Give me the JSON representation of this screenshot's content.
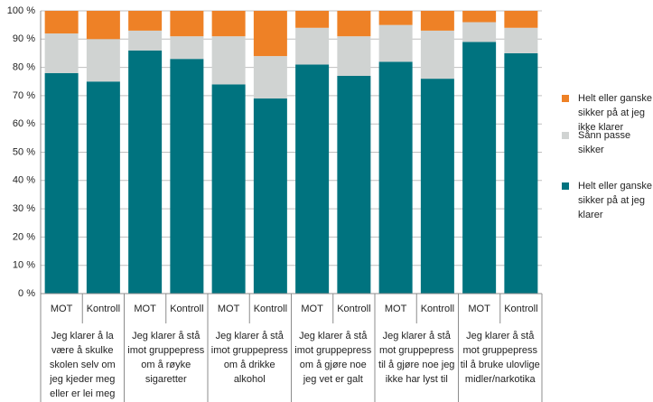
{
  "chart_data": {
    "type": "bar",
    "stacked": true,
    "grid": true,
    "legend": "right",
    "categories": [
      "MOT",
      "Kontroll",
      "MOT",
      "Kontroll",
      "MOT",
      "Kontroll",
      "MOT",
      "Kontroll",
      "MOT",
      "Kontroll",
      "MOT",
      "Kontroll"
    ],
    "groups": [
      "Jeg klarer å la være å skulke skolen selv om jeg kjeder meg eller er lei meg",
      "Jeg klarer å stå imot gruppepress om å røyke sigaretter",
      "Jeg klarer å stå imot gruppepress om å drikke alkohol",
      "Jeg klarer å stå imot gruppepress om å gjøre noe jeg vet er galt",
      "Jeg klarer å stå mot gruppepress til å gjøre noe jeg ikke har lyst til",
      "Jeg klarer å stå mot gruppepress til å bruke ulovlige midler/narkotika"
    ],
    "series": [
      {
        "name": "Helt eller ganske sikker på at jeg klarer",
        "color": "#00737f",
        "values": [
          78,
          75,
          86,
          83,
          74,
          69,
          81,
          77,
          82,
          76,
          89,
          85
        ]
      },
      {
        "name": "Sånn passe sikker",
        "color": "#d0d3d2",
        "values": [
          14,
          15,
          7,
          8,
          17,
          15,
          13,
          14,
          13,
          17,
          7,
          9
        ]
      },
      {
        "name": "Helt eller ganske sikker på at jeg ikke klarer",
        "color": "#ee8126",
        "values": [
          8,
          10,
          7,
          9,
          9,
          16,
          6,
          9,
          5,
          7,
          4,
          6
        ]
      }
    ],
    "ylim": [
      0,
      100
    ],
    "yticks": [
      {
        "value": 0,
        "label": "0 %"
      },
      {
        "value": 10,
        "label": "10 %"
      },
      {
        "value": 20,
        "label": "20 %"
      },
      {
        "value": 30,
        "label": "30 %"
      },
      {
        "value": 40,
        "label": "40 %"
      },
      {
        "value": 50,
        "label": "50 %"
      },
      {
        "value": 60,
        "label": "60 %"
      },
      {
        "value": 70,
        "label": "70 %"
      },
      {
        "value": 80,
        "label": "80 %"
      },
      {
        "value": 90,
        "label": "90 %"
      },
      {
        "value": 100,
        "label": "100 %"
      }
    ]
  }
}
